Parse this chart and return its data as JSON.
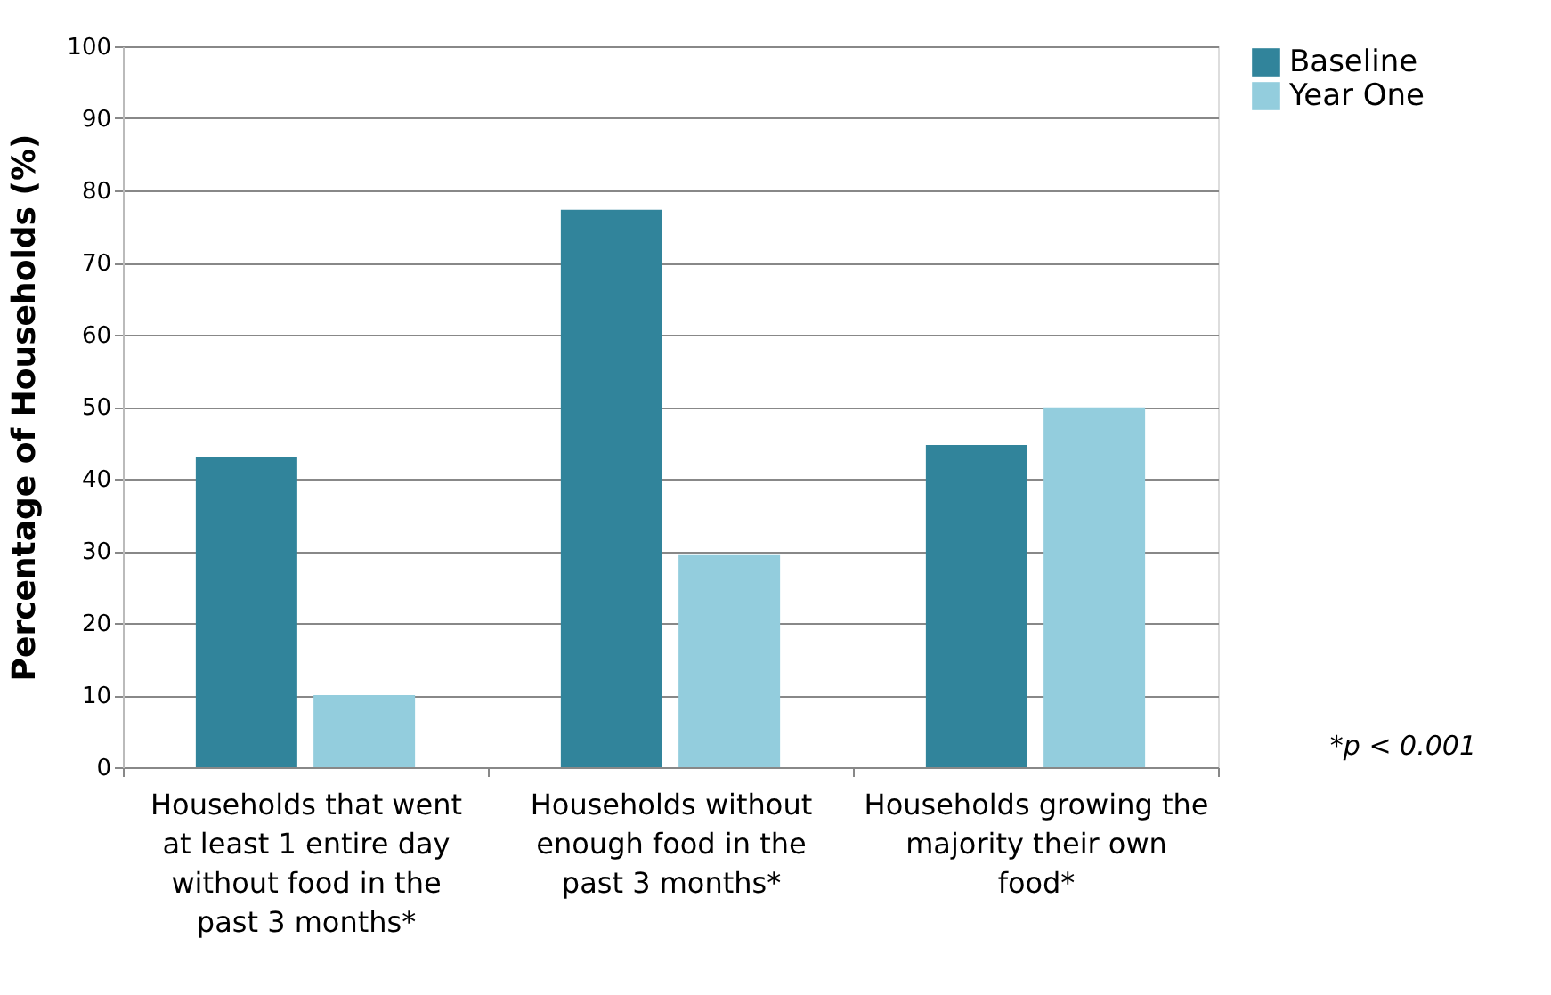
{
  "chart_data": {
    "type": "bar",
    "ylabel": "Percentage of Households (%)",
    "categories": [
      "Households that went at least 1 entire day without food in the past 3 months*",
      "Households without enough food in the past 3 months*",
      "Households growing the majority their own food*"
    ],
    "series": [
      {
        "name": "Baseline",
        "color": "#31849b",
        "values": [
          43,
          77.3,
          44.7
        ]
      },
      {
        "name": "Year One",
        "color": "#93cddd",
        "values": [
          10,
          29.4,
          49.9
        ]
      }
    ],
    "ylim": [
      0,
      100
    ],
    "yticks": [
      0,
      10,
      20,
      30,
      40,
      50,
      60,
      70,
      80,
      90,
      100
    ],
    "grid": "y",
    "legend": "right",
    "annotations": [
      "*p < 0.001"
    ]
  }
}
